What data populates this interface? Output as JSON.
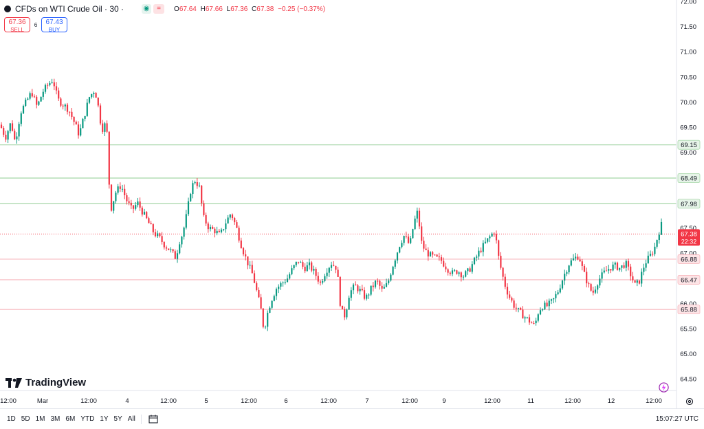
{
  "header": {
    "symbol_title": "CFDs on WTI Crude Oil · 30 ·",
    "status_pills": [
      "◉",
      "="
    ],
    "ohlc": {
      "o_label": "O",
      "o": "67.64",
      "h_label": "H",
      "h": "67.66",
      "l_label": "L",
      "l": "67.36",
      "c_label": "C",
      "c": "67.38",
      "change": "−0.25 (−0.37%)"
    }
  },
  "trade": {
    "sell_price": "67.36",
    "sell_label": "SELL",
    "spread": "6",
    "buy_price": "67.43",
    "buy_label": "BUY"
  },
  "branding": {
    "logo_text": "TradingView"
  },
  "bottom_bar": {
    "ranges": [
      "1D",
      "5D",
      "1M",
      "3M",
      "6M",
      "YTD",
      "1Y",
      "5Y",
      "All"
    ],
    "clock": "15:07:27 UTC"
  },
  "colors": {
    "up": "#089981",
    "down": "#f23645",
    "support_line": "#a5d6a7",
    "resistance_line": "#f7b7bd",
    "price_tag": "#f23645"
  },
  "chart_data": {
    "type": "candlestick",
    "y_axis": {
      "ticks": [
        "72.00",
        "71.50",
        "71.00",
        "70.50",
        "70.00",
        "69.50",
        "69.00",
        "68.50",
        "68.00",
        "67.50",
        "67.00",
        "66.50",
        "66.00",
        "65.50",
        "65.00",
        "64.50"
      ],
      "ylim": [
        64.38,
        72.0
      ]
    },
    "x_axis": {
      "ticks": [
        "12:00",
        "Mar",
        "12:00",
        "4",
        "12:00",
        "5",
        "12:00",
        "6",
        "12:00",
        "7",
        "12:00",
        "9",
        "12:00",
        "11",
        "12:00",
        "12",
        "12:00"
      ]
    },
    "horizontal_levels": [
      {
        "value": 69.15,
        "label": "69.15",
        "style": "support"
      },
      {
        "value": 68.49,
        "label": "68.49",
        "style": "support"
      },
      {
        "value": 67.98,
        "label": "67.98",
        "style": "support"
      },
      {
        "value": 66.88,
        "label": "66.88",
        "style": "resistance"
      },
      {
        "value": 66.47,
        "label": "66.47",
        "style": "resistance"
      },
      {
        "value": 65.88,
        "label": "65.88",
        "style": "resistance"
      }
    ],
    "current_price": {
      "value": 67.38,
      "label": "67.38",
      "countdown": "22:32"
    },
    "price_path": [
      [
        0,
        69.55
      ],
      [
        8,
        69.3
      ],
      [
        16,
        69.6
      ],
      [
        22,
        69.2
      ],
      [
        30,
        69.8
      ],
      [
        38,
        70.0
      ],
      [
        46,
        70.2
      ],
      [
        54,
        69.9
      ],
      [
        62,
        70.2
      ],
      [
        70,
        70.35
      ],
      [
        77,
        70.45
      ],
      [
        84,
        70.05
      ],
      [
        92,
        69.95
      ],
      [
        100,
        69.85
      ],
      [
        108,
        69.6
      ],
      [
        115,
        69.35
      ],
      [
        122,
        69.7
      ],
      [
        130,
        70.1
      ],
      [
        138,
        70.25
      ],
      [
        143,
        69.9
      ],
      [
        148,
        69.45
      ],
      [
        155,
        69.6
      ],
      [
        158,
        68.5
      ],
      [
        162,
        67.9
      ],
      [
        168,
        68.2
      ],
      [
        176,
        68.35
      ],
      [
        184,
        68.05
      ],
      [
        192,
        67.85
      ],
      [
        200,
        68.0
      ],
      [
        208,
        67.8
      ],
      [
        216,
        67.6
      ],
      [
        224,
        67.4
      ],
      [
        232,
        67.3
      ],
      [
        240,
        67.15
      ],
      [
        248,
        67.05
      ],
      [
        256,
        66.9
      ],
      [
        260,
        67.2
      ],
      [
        266,
        67.4
      ],
      [
        272,
        67.8
      ],
      [
        278,
        68.3
      ],
      [
        284,
        68.45
      ],
      [
        290,
        68.3
      ],
      [
        296,
        67.7
      ],
      [
        304,
        67.5
      ],
      [
        312,
        67.45
      ],
      [
        320,
        67.35
      ],
      [
        328,
        67.6
      ],
      [
        336,
        67.8
      ],
      [
        344,
        67.5
      ],
      [
        350,
        67.2
      ],
      [
        356,
        66.95
      ],
      [
        362,
        66.75
      ],
      [
        368,
        66.55
      ],
      [
        374,
        66.2
      ],
      [
        380,
        65.85
      ],
      [
        384,
        65.45
      ],
      [
        388,
        65.75
      ],
      [
        394,
        66.05
      ],
      [
        402,
        66.3
      ],
      [
        410,
        66.4
      ],
      [
        418,
        66.5
      ],
      [
        426,
        66.7
      ],
      [
        434,
        66.85
      ],
      [
        442,
        66.7
      ],
      [
        450,
        66.75
      ],
      [
        458,
        66.6
      ],
      [
        466,
        66.4
      ],
      [
        474,
        66.65
      ],
      [
        482,
        66.8
      ],
      [
        490,
        66.7
      ],
      [
        496,
        65.85
      ],
      [
        502,
        65.75
      ],
      [
        508,
        66.2
      ],
      [
        516,
        66.35
      ],
      [
        524,
        66.25
      ],
      [
        532,
        66.1
      ],
      [
        540,
        66.3
      ],
      [
        548,
        66.45
      ],
      [
        556,
        66.25
      ],
      [
        564,
        66.4
      ],
      [
        570,
        66.7
      ],
      [
        576,
        66.95
      ],
      [
        582,
        67.2
      ],
      [
        588,
        67.35
      ],
      [
        596,
        67.15
      ],
      [
        602,
        67.6
      ],
      [
        608,
        67.85
      ],
      [
        612,
        67.25
      ],
      [
        618,
        67.05
      ],
      [
        626,
        66.95
      ],
      [
        634,
        66.9
      ],
      [
        642,
        66.85
      ],
      [
        650,
        66.7
      ],
      [
        658,
        66.6
      ],
      [
        666,
        66.65
      ],
      [
        674,
        66.55
      ],
      [
        682,
        66.65
      ],
      [
        690,
        66.85
      ],
      [
        698,
        67.05
      ],
      [
        706,
        67.2
      ],
      [
        714,
        67.35
      ],
      [
        720,
        67.45
      ],
      [
        724,
        67.0
      ],
      [
        730,
        66.6
      ],
      [
        736,
        66.3
      ],
      [
        742,
        66.1
      ],
      [
        748,
        65.95
      ],
      [
        754,
        65.85
      ],
      [
        762,
        65.75
      ],
      [
        770,
        65.65
      ],
      [
        778,
        65.55
      ],
      [
        782,
        65.8
      ],
      [
        788,
        65.95
      ],
      [
        796,
        65.95
      ],
      [
        804,
        66.05
      ],
      [
        812,
        66.25
      ],
      [
        820,
        66.55
      ],
      [
        828,
        66.8
      ],
      [
        836,
        66.9
      ],
      [
        842,
        66.95
      ],
      [
        848,
        66.65
      ],
      [
        856,
        66.35
      ],
      [
        862,
        66.2
      ],
      [
        870,
        66.45
      ],
      [
        878,
        66.6
      ],
      [
        886,
        66.7
      ],
      [
        894,
        66.75
      ],
      [
        902,
        66.7
      ],
      [
        910,
        66.8
      ],
      [
        918,
        66.55
      ],
      [
        924,
        66.35
      ],
      [
        930,
        66.45
      ],
      [
        938,
        66.8
      ],
      [
        946,
        66.95
      ],
      [
        952,
        67.1
      ],
      [
        958,
        67.4
      ],
      [
        963,
        67.6
      ],
      [
        966,
        67.38
      ]
    ]
  }
}
